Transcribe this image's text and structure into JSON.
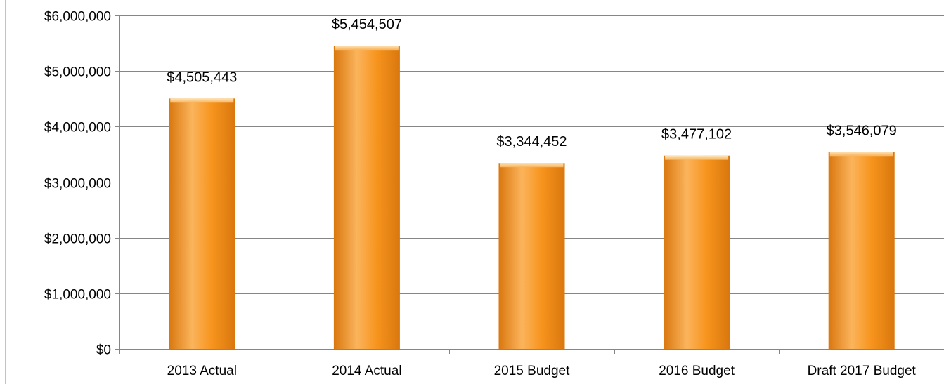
{
  "chart_data": {
    "type": "bar",
    "categories": [
      "2013 Actual",
      "2014 Actual",
      "2015 Budget",
      "2016 Budget",
      "Draft 2017 Budget"
    ],
    "values": [
      4505443,
      5454507,
      3344452,
      3477102,
      3546079
    ],
    "data_labels": [
      "$4,505,443",
      "$5,454,507",
      "$3,344,452",
      "$3,477,102",
      "$3,546,079"
    ],
    "title": "",
    "xlabel": "",
    "ylabel": "",
    "ylim": [
      0,
      6000000
    ],
    "yticks": [
      0,
      1000000,
      2000000,
      3000000,
      4000000,
      5000000,
      6000000
    ],
    "ytick_labels": [
      "$0",
      "$1,000,000",
      "$2,000,000",
      "$3,000,000",
      "$4,000,000",
      "$5,000,000",
      "$6,000,000"
    ],
    "grid": true,
    "legend": "none",
    "bar_color": "#f7941d",
    "bar_highlight": "#fbb45c",
    "bar_shadow": "#d9770e",
    "gridline_color": "#868686"
  }
}
